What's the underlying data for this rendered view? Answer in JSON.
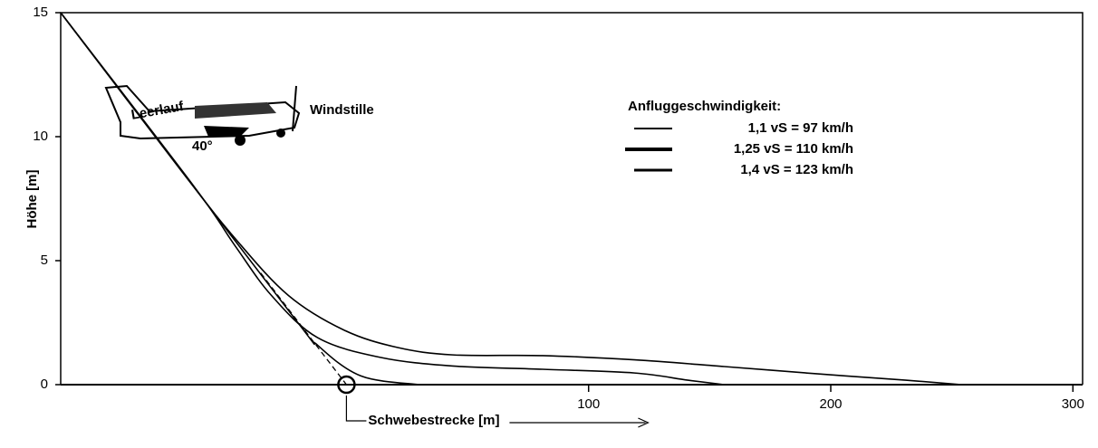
{
  "chart_data": {
    "type": "line",
    "y_label": "Höhe [m]",
    "x_label": "Schwebestrecke [m]",
    "legend_title": "Anfluggeschwindigkeit:",
    "annotations": [
      "Leerlauf",
      "40°",
      "Windstille"
    ],
    "xlim": [
      -118,
      304
    ],
    "xticks": [
      100,
      200,
      300
    ],
    "ylim": [
      0,
      15
    ],
    "yticks": [
      0,
      5,
      10,
      15
    ],
    "legend": "upper right",
    "series": [
      {
        "name": "1,1 vS = 97 km/h",
        "color": "#000000",
        "x": [
          -118,
          -24,
          -12,
          6,
          30
        ],
        "values": [
          15,
          3,
          1.6,
          0.35,
          0
        ]
      },
      {
        "name": "1,25 vS = 110 km/h",
        "color": "#000000",
        "x": [
          -118,
          -63,
          -46,
          -31,
          -12,
          14,
          44,
          81,
          119,
          141,
          156
        ],
        "values": [
          15,
          8,
          5.6,
          3.6,
          1.9,
          1.1,
          0.75,
          0.62,
          0.47,
          0.18,
          0
        ]
      },
      {
        "name": "1,4 vS = 123 km/h",
        "color": "#000000",
        "x": [
          -118,
          -68,
          -46,
          -24,
          -1,
          21,
          44,
          81,
          119,
          156,
          194,
          231,
          254
        ],
        "values": [
          15,
          8.6,
          5.9,
          3.6,
          2.2,
          1.5,
          1.2,
          1.17,
          1.0,
          0.73,
          0.44,
          0.18,
          0
        ]
      }
    ]
  }
}
